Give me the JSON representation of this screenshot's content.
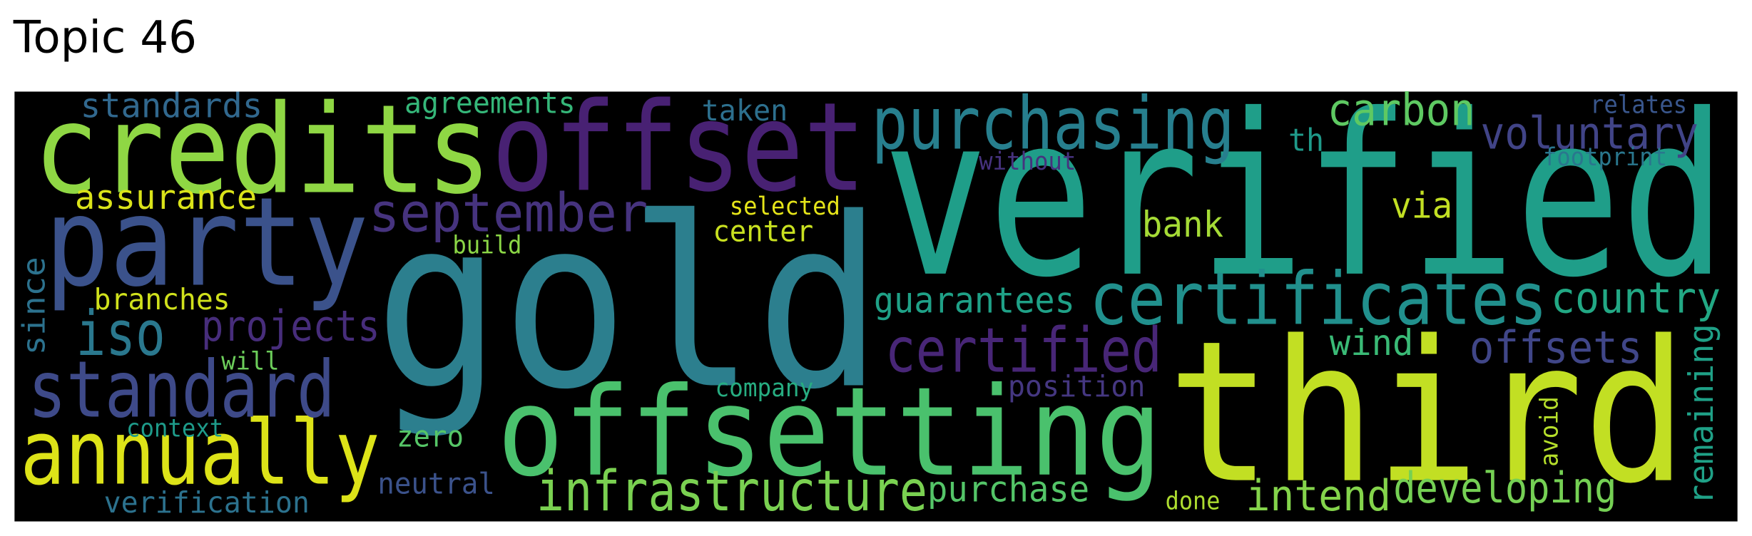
{
  "title": "Topic 46",
  "words": [
    {
      "text": "gold",
      "color": "#2c7f8e"
    },
    {
      "text": "verified",
      "color": "#1f9e89"
    },
    {
      "text": "third",
      "color": "#c2df23"
    },
    {
      "text": "credits",
      "color": "#8fd744"
    },
    {
      "text": "offset",
      "color": "#482173"
    },
    {
      "text": "party",
      "color": "#3b528b"
    },
    {
      "text": "offsetting",
      "color": "#4ac16d"
    },
    {
      "text": "annually",
      "color": "#dde318"
    },
    {
      "text": "standard",
      "color": "#3e4a89"
    },
    {
      "text": "purchasing",
      "color": "#277f8e"
    },
    {
      "text": "certificates",
      "color": "#21908d"
    },
    {
      "text": "iso",
      "color": "#2a788e"
    },
    {
      "text": "certified",
      "color": "#482677"
    },
    {
      "text": "september",
      "color": "#46337e"
    },
    {
      "text": "infrastructure",
      "color": "#7ad151"
    },
    {
      "text": "carbon",
      "color": "#5ec962"
    },
    {
      "text": "voluntary",
      "color": "#414487"
    },
    {
      "text": "offsets",
      "color": "#404688"
    },
    {
      "text": "projects",
      "color": "#472d7b"
    },
    {
      "text": "country",
      "color": "#22a884"
    },
    {
      "text": "intend",
      "color": "#84d44b"
    },
    {
      "text": "developing",
      "color": "#75d054"
    },
    {
      "text": "guarantees",
      "color": "#1fa187"
    },
    {
      "text": "purchase",
      "color": "#54c568"
    },
    {
      "text": "remaining",
      "color": "#1fa187"
    },
    {
      "text": "wind",
      "color": "#3aba76"
    },
    {
      "text": "bank",
      "color": "#a5db36"
    },
    {
      "text": "via",
      "color": "#c2df23"
    },
    {
      "text": "standards",
      "color": "#31688e"
    },
    {
      "text": "assurance",
      "color": "#dae319"
    },
    {
      "text": "th",
      "color": "#1f9a8a"
    },
    {
      "text": "since",
      "color": "#2c728e"
    },
    {
      "text": "agreements",
      "color": "#35b779"
    },
    {
      "text": "taken",
      "color": "#2d708e"
    },
    {
      "text": "center",
      "color": "#c8e020"
    },
    {
      "text": "branches",
      "color": "#d0e11c"
    },
    {
      "text": "position",
      "color": "#453781"
    },
    {
      "text": "zero",
      "color": "#56c667"
    },
    {
      "text": "neutral",
      "color": "#3b528b"
    },
    {
      "text": "verification",
      "color": "#2c728e"
    },
    {
      "text": "relates",
      "color": "#39568c"
    },
    {
      "text": "without",
      "color": "#46327e"
    },
    {
      "text": "footprint",
      "color": "#2a778e"
    },
    {
      "text": "selected",
      "color": "#e5e419"
    },
    {
      "text": "build",
      "color": "#8bd646"
    },
    {
      "text": "will",
      "color": "#6ccd5a"
    },
    {
      "text": "company",
      "color": "#27ad81"
    },
    {
      "text": "context",
      "color": "#1e9b8a"
    },
    {
      "text": "done",
      "color": "#addc30"
    },
    {
      "text": "avoid",
      "color": "#b5de2b"
    }
  ]
}
